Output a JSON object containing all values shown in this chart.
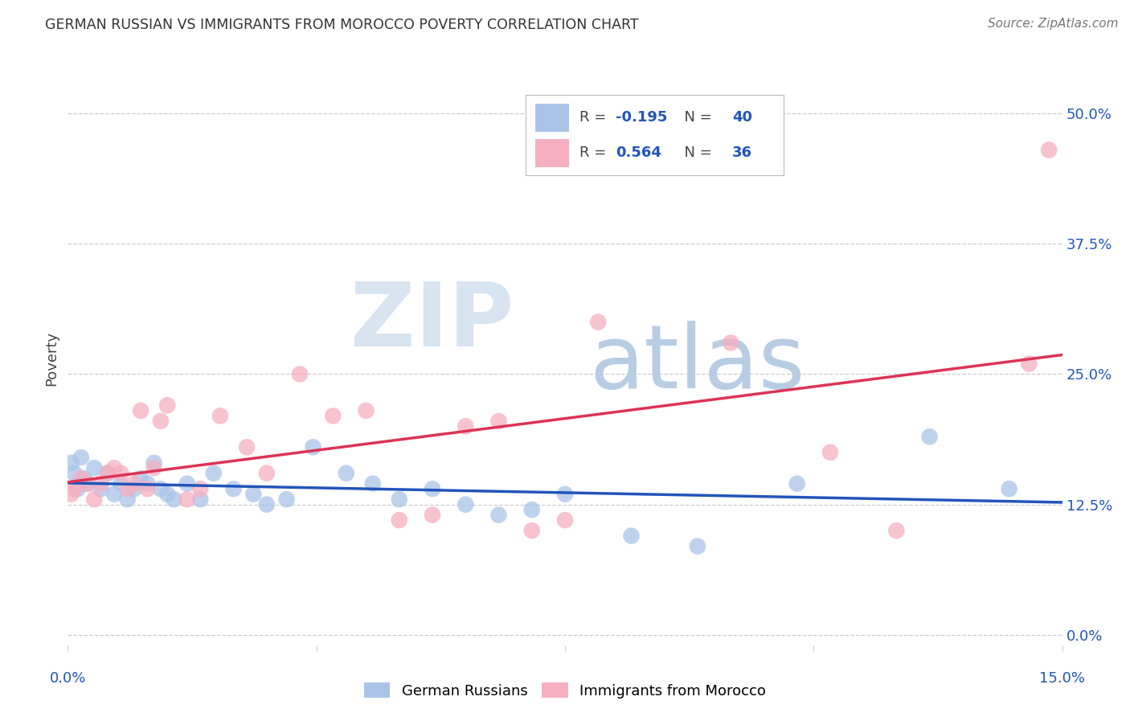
{
  "title": "GERMAN RUSSIAN VS IMMIGRANTS FROM MOROCCO POVERTY CORRELATION CHART",
  "source": "Source: ZipAtlas.com",
  "ylabel": "Poverty",
  "xlim": [
    0.0,
    15.0
  ],
  "ylim": [
    -1.0,
    54.0
  ],
  "yticks": [
    0.0,
    12.5,
    25.0,
    37.5,
    50.0
  ],
  "xticks": [
    0.0,
    3.75,
    7.5,
    11.25,
    15.0
  ],
  "blue_R": -0.195,
  "blue_N": 40,
  "pink_R": 0.564,
  "pink_N": 36,
  "blue_color": "#aac4e8",
  "pink_color": "#f5afc0",
  "blue_line_color": "#2255bb",
  "pink_line_color": "#dd3355",
  "text_color": "#2255bb",
  "watermark_ZIP_color": "#d8e4f0",
  "watermark_atlas_color": "#b8cce4",
  "blue_points_x": [
    0.05,
    0.1,
    0.15,
    0.2,
    0.25,
    0.3,
    0.4,
    0.5,
    0.6,
    0.7,
    0.8,
    0.9,
    1.0,
    1.1,
    1.2,
    1.3,
    1.4,
    1.5,
    1.6,
    1.8,
    2.0,
    2.2,
    2.5,
    2.8,
    3.0,
    3.3,
    3.7,
    4.2,
    4.6,
    5.0,
    5.5,
    6.0,
    6.5,
    7.0,
    7.5,
    8.5,
    9.5,
    11.0,
    13.0,
    14.2
  ],
  "blue_points_y": [
    16.5,
    15.5,
    14.0,
    17.0,
    15.0,
    14.5,
    16.0,
    14.0,
    15.5,
    13.5,
    14.5,
    13.0,
    14.0,
    15.0,
    14.5,
    16.5,
    14.0,
    13.5,
    13.0,
    14.5,
    13.0,
    15.5,
    14.0,
    13.5,
    12.5,
    13.0,
    18.0,
    15.5,
    14.5,
    13.0,
    14.0,
    12.5,
    11.5,
    12.0,
    13.5,
    9.5,
    8.5,
    14.5,
    19.0,
    14.0
  ],
  "pink_points_x": [
    0.05,
    0.1,
    0.2,
    0.3,
    0.4,
    0.5,
    0.6,
    0.7,
    0.8,
    0.9,
    1.0,
    1.1,
    1.2,
    1.3,
    1.4,
    1.5,
    1.8,
    2.0,
    2.3,
    2.7,
    3.0,
    3.5,
    4.0,
    4.5,
    5.0,
    5.5,
    6.0,
    6.5,
    7.0,
    7.5,
    8.0,
    10.0,
    11.5,
    12.5,
    14.5,
    14.8
  ],
  "pink_points_y": [
    13.5,
    14.0,
    15.0,
    14.5,
    13.0,
    14.5,
    15.5,
    16.0,
    15.5,
    14.0,
    14.5,
    21.5,
    14.0,
    16.0,
    20.5,
    22.0,
    13.0,
    14.0,
    21.0,
    18.0,
    15.5,
    25.0,
    21.0,
    21.5,
    11.0,
    11.5,
    20.0,
    20.5,
    10.0,
    11.0,
    30.0,
    28.0,
    17.5,
    10.0,
    26.0,
    46.5
  ]
}
